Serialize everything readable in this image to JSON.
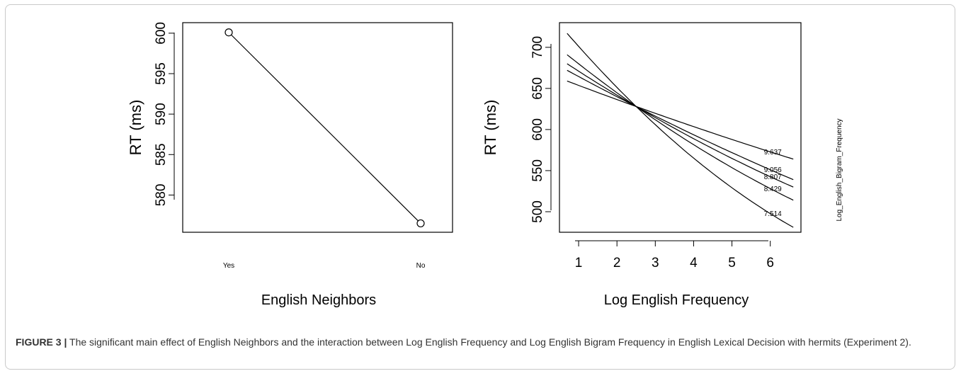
{
  "caption": {
    "label": "FIGURE 3 |",
    "text": " The significant main effect of English Neighbors and the interaction between Log English Frequency and Log English Bigram Frequency in English Lexical Decision with hermits (Experiment 2)."
  },
  "chart_data": [
    {
      "type": "line",
      "xlabel": "English Neighbors",
      "ylabel": "RT (ms)",
      "categories": [
        "Yes",
        "No"
      ],
      "values": [
        600.1,
        576.5
      ],
      "yticks": [
        580,
        585,
        590,
        595,
        600
      ],
      "ylim": [
        575.4,
        601.3
      ],
      "markers": "open-circle",
      "grid": false
    },
    {
      "type": "line",
      "xlabel": "Log English Frequency",
      "ylabel": "RT (ms)",
      "xticks": [
        1,
        2,
        3,
        4,
        5,
        6
      ],
      "yticks": [
        500,
        550,
        600,
        650,
        700
      ],
      "xlim": [
        0.5,
        6.8
      ],
      "ylim": [
        475,
        730
      ],
      "legend_title": "Log_English_Bigram_Frequency",
      "grid": false,
      "series": [
        {
          "name": "9.637",
          "x": [
            0.7,
            2.5,
            6.6
          ],
          "y": [
            659,
            628,
            564
          ]
        },
        {
          "name": "9.056",
          "x": [
            0.7,
            2.5,
            6.6
          ],
          "y": [
            672,
            628,
            539
          ]
        },
        {
          "name": "8.807",
          "x": [
            0.7,
            2.5,
            6.6
          ],
          "y": [
            680,
            628,
            530
          ]
        },
        {
          "name": "8.429",
          "x": [
            0.7,
            2.5,
            6.6
          ],
          "y": [
            691,
            628,
            514
          ]
        },
        {
          "name": "7.514",
          "x": [
            0.7,
            2.5,
            6.6
          ],
          "y": [
            717,
            628,
            481
          ]
        }
      ]
    }
  ]
}
